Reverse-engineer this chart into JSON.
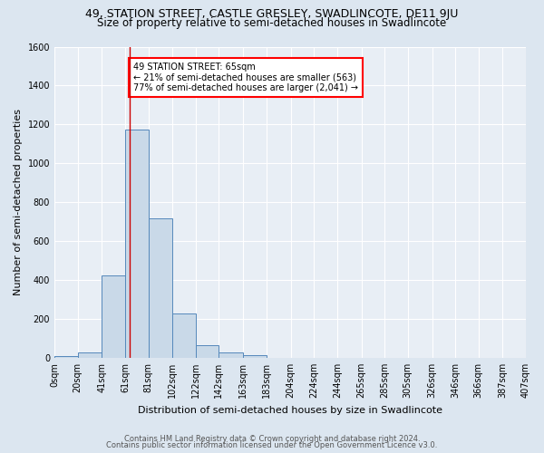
{
  "title": "49, STATION STREET, CASTLE GRESLEY, SWADLINCOTE, DE11 9JU",
  "subtitle": "Size of property relative to semi-detached houses in Swadlincote",
  "xlabel": "Distribution of semi-detached houses by size in Swadlincote",
  "ylabel": "Number of semi-detached properties",
  "footer_line1": "Contains HM Land Registry data © Crown copyright and database right 2024.",
  "footer_line2": "Contains public sector information licensed under the Open Government Licence v3.0.",
  "bin_edges": [
    0,
    20,
    41,
    61,
    81,
    102,
    122,
    142,
    163,
    183,
    204,
    224,
    244,
    265,
    285,
    305,
    326,
    346,
    366,
    387,
    407
  ],
  "bin_labels": [
    "0sqm",
    "20sqm",
    "41sqm",
    "61sqm",
    "81sqm",
    "102sqm",
    "122sqm",
    "142sqm",
    "163sqm",
    "183sqm",
    "204sqm",
    "224sqm",
    "244sqm",
    "265sqm",
    "285sqm",
    "305sqm",
    "326sqm",
    "346sqm",
    "366sqm",
    "387sqm",
    "407sqm"
  ],
  "bar_heights": [
    10,
    28,
    425,
    1175,
    715,
    230,
    65,
    28,
    12,
    0,
    0,
    0,
    0,
    0,
    0,
    0,
    0,
    0,
    0,
    0
  ],
  "bar_color": "#c9d9e8",
  "bar_edge_color": "#5588bb",
  "property_size": 65,
  "red_line_x": 65,
  "annotation_text": "49 STATION STREET: 65sqm\n← 21% of semi-detached houses are smaller (563)\n77% of semi-detached houses are larger (2,041) →",
  "annotation_box_color": "white",
  "annotation_box_edge_color": "red",
  "red_line_color": "#cc0000",
  "ylim": [
    0,
    1600
  ],
  "yticks": [
    0,
    200,
    400,
    600,
    800,
    1000,
    1200,
    1400,
    1600
  ],
  "bg_color": "#dce6f0",
  "plot_bg_color": "#e8eef5",
  "grid_color": "white",
  "title_fontsize": 9,
  "subtitle_fontsize": 8.5,
  "axis_label_fontsize": 8,
  "tick_fontsize": 7,
  "footer_fontsize": 6
}
